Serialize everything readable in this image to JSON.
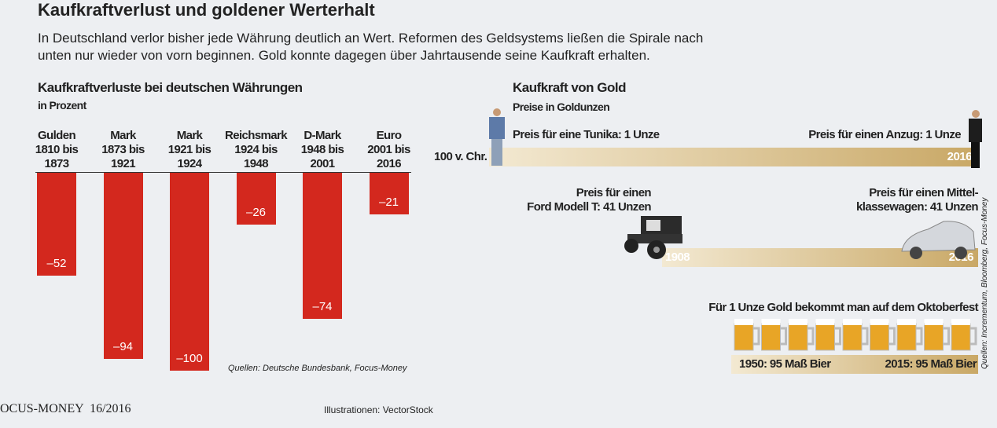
{
  "title": "Kaufkraftverlust und goldener Werterhalt",
  "subtitle": "In Deutschland verlor bisher jede Währung deutlich an Wert. Reformen des Geldsystems ließen die Spirale nach\nunten nur wieder von vorn beginnen. Gold konnte dagegen über Jahrtausende seine Kaufkraft erhalten.",
  "chart_data": {
    "type": "bar",
    "title": "Kaufkraftverluste bei deutschen Währungen",
    "subtitle": "in Prozent",
    "categories": [
      "Gulden\n1810 bis\n1873",
      "Mark\n1873 bis\n1921",
      "Mark\n1921 bis\n1924",
      "Reichsmark\n1924 bis\n1948",
      "D-Mark\n1948 bis\n2001",
      "Euro\n2001 bis\n2016"
    ],
    "values": [
      -52,
      -94,
      -100,
      -26,
      -74,
      -21
    ],
    "value_labels": [
      "–52",
      "–94",
      "–100",
      "–26",
      "–74",
      "–21"
    ],
    "color": "#d3281e",
    "ylim": [
      -100,
      0
    ],
    "source": "Quellen: Deutsche Bundesbank, Focus-Money"
  },
  "gold": {
    "title": "Kaufkraft von Gold",
    "subtitle": "Preise in Goldunzen",
    "rows": [
      {
        "left_label": "Preis für eine Tunika: 1 Unze",
        "right_label": "Preis für einen Anzug: 1 Unze",
        "start": "100 v. Chr.",
        "end": "2016"
      },
      {
        "left_label": "Preis für einen\nFord Modell T: 41 Unzen",
        "right_label": "Preis für einen Mittel-\nklassewagen: 41 Unzen",
        "start": "1908",
        "end": "2016"
      },
      {
        "heading": "Für 1 Unze Gold bekommt man auf dem Oktoberfest",
        "left_label": "1950: 95 Maß Bier",
        "right_label": "2015: 95 Maß Bier"
      }
    ],
    "source": "Quellen: Incrementum, Bloomberg, Focus-Money"
  },
  "footer": {
    "magazine": "OCUS-MONEY  16/2016",
    "credit": "Illustrationen: VectorStock"
  }
}
